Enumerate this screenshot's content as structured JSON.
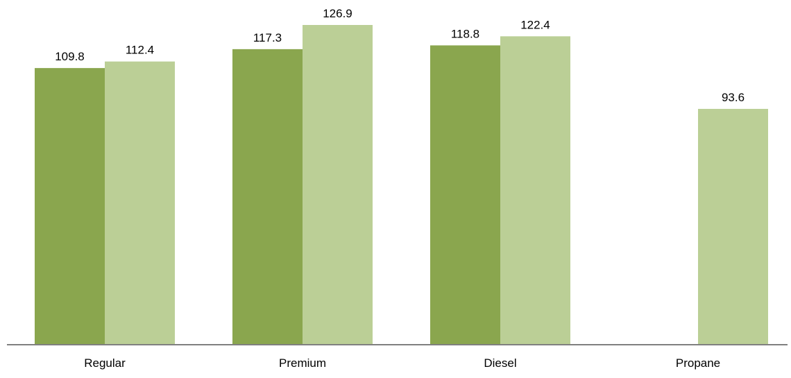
{
  "chart_data": {
    "type": "bar",
    "categories": [
      "Regular",
      "Premium",
      "Diesel",
      "Propane"
    ],
    "series": [
      {
        "values": [
          109.8,
          117.3,
          118.8,
          null
        ],
        "color": "#8aa64e"
      },
      {
        "values": [
          112.4,
          126.9,
          122.4,
          93.6
        ],
        "color": "#bbcf96"
      }
    ],
    "data_labels": true,
    "ylim": [
      0,
      130
    ],
    "y_axis_visible": false,
    "grid": false,
    "legend": "none",
    "baseline_color": "#7f7f7f"
  }
}
